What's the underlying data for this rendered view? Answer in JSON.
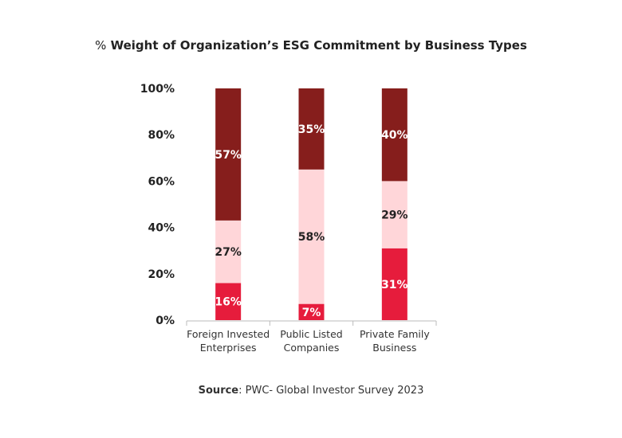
{
  "chart_data": {
    "type": "bar",
    "stacked": true,
    "title_prefix": "%",
    "title": "Weight of Organization’s ESG Commitment by Business Types",
    "categories": [
      [
        "Foreign Invested",
        "Enterprises"
      ],
      [
        "Public Listed",
        "Companies"
      ],
      [
        "Private Family",
        "Business"
      ]
    ],
    "series": [
      {
        "values": [
          16,
          7,
          31
        ],
        "color": "#E61C3C",
        "label_color": "#ffffff"
      },
      {
        "values": [
          27,
          58,
          29
        ],
        "color": "#FFD6D9",
        "label_color": "#222222"
      },
      {
        "values": [
          57,
          35,
          40
        ],
        "color": "#861E1C",
        "label_color": "#ffffff"
      }
    ],
    "data_labels": [
      [
        "16%",
        "7%",
        "31%"
      ],
      [
        "27%",
        "58%",
        "29%"
      ],
      [
        "57%",
        "35%",
        "40%"
      ]
    ],
    "ylim": [
      0,
      100
    ],
    "yticks": [
      "0%",
      "20%",
      "40%",
      "60%",
      "80%",
      "100%"
    ],
    "grid": false,
    "legend": "none"
  },
  "source": {
    "label": "Source",
    "text": ": PWC- Global Investor Survey 2023"
  }
}
